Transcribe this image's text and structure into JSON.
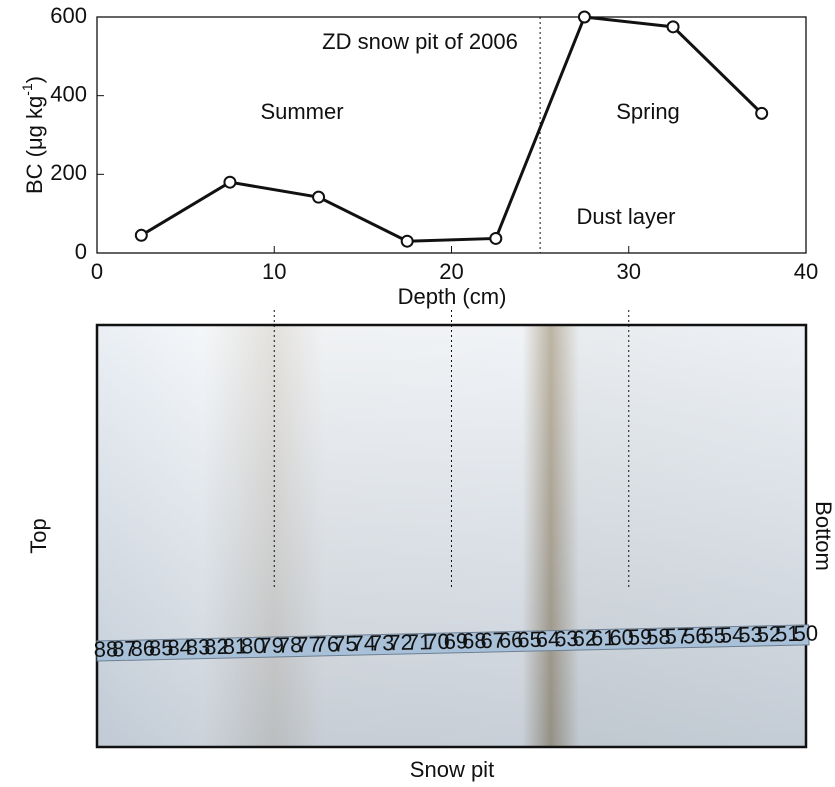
{
  "chart_data": {
    "type": "line",
    "y_label": {
      "text": "BC (μg kg",
      "sup": "-1",
      "close": ")"
    },
    "x_label": "Depth (cm)",
    "xlim": [
      0,
      40
    ],
    "xticks": [
      0,
      10,
      20,
      30,
      40
    ],
    "ylim": [
      0,
      600
    ],
    "yticks": [
      0,
      200,
      400,
      600
    ],
    "series": [
      {
        "color": "#111111",
        "x": [
          2.5,
          7.5,
          12.5,
          17.5,
          22.5,
          27.5,
          32.5,
          37.5
        ],
        "values": [
          45,
          180,
          142,
          30,
          37,
          600,
          575,
          355
        ]
      }
    ],
    "divider": 25,
    "annotations": [
      "ZD snow pit of 2006",
      "Summer",
      "Spring",
      "Dust layer"
    ]
  },
  "photo": {
    "left": "Top",
    "right": "Bottom",
    "bottom": "Snow pit",
    "ruler": [
      88,
      87,
      86,
      85,
      84,
      83,
      82,
      81,
      80,
      79,
      78,
      77,
      76,
      75,
      74,
      73,
      72,
      71,
      70,
      69,
      68,
      67,
      66,
      65,
      64,
      63,
      62,
      61,
      60,
      59,
      58,
      57,
      56,
      55,
      54,
      53,
      52,
      51,
      50
    ]
  }
}
